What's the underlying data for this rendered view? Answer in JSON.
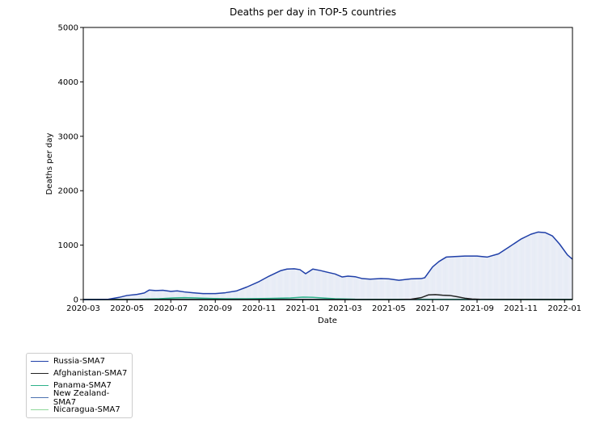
{
  "chart_data": {
    "type": "line",
    "title": "Deaths per day in TOP-5 countries",
    "xlabel": "Date",
    "ylabel": "Deaths per day",
    "ylim": [
      0,
      5000
    ],
    "yticks": [
      0,
      1000,
      2000,
      3000,
      4000,
      5000
    ],
    "xlim": [
      "2020-03-01",
      "2022-01-12"
    ],
    "xticks": [
      "2020-03",
      "2020-05",
      "2020-07",
      "2020-09",
      "2020-11",
      "2021-01",
      "2021-03",
      "2021-05",
      "2021-07",
      "2021-09",
      "2021-11",
      "2022-01"
    ],
    "grid": false,
    "legend_position": "bottom-left, below the plot",
    "bars": {
      "series": "Russia",
      "color": "#dfe5f2",
      "note": "daily bars behind the lines"
    },
    "series": [
      {
        "name": "Russia-SMA7",
        "color": "#1f3fa8",
        "x": [
          "2020-03-01",
          "2020-03-20",
          "2020-04-05",
          "2020-04-20",
          "2020-05-01",
          "2020-05-15",
          "2020-05-25",
          "2020-06-01",
          "2020-06-10",
          "2020-06-20",
          "2020-07-01",
          "2020-07-10",
          "2020-07-20",
          "2020-08-01",
          "2020-08-15",
          "2020-09-01",
          "2020-09-15",
          "2020-10-01",
          "2020-10-15",
          "2020-11-01",
          "2020-11-15",
          "2020-12-01",
          "2020-12-10",
          "2020-12-20",
          "2020-12-28",
          "2021-01-05",
          "2021-01-15",
          "2021-01-25",
          "2021-02-05",
          "2021-02-15",
          "2021-02-25",
          "2021-03-05",
          "2021-03-15",
          "2021-03-25",
          "2021-04-05",
          "2021-04-20",
          "2021-05-01",
          "2021-05-15",
          "2021-06-01",
          "2021-06-15",
          "2021-06-20",
          "2021-07-01",
          "2021-07-10",
          "2021-07-20",
          "2021-08-01",
          "2021-08-15",
          "2021-08-20",
          "2021-09-01",
          "2021-09-15",
          "2021-10-01",
          "2021-10-15",
          "2021-11-01",
          "2021-11-15",
          "2021-11-25",
          "2021-12-05",
          "2021-12-15",
          "2021-12-25",
          "2022-01-05",
          "2022-01-12"
        ],
        "y": [
          0,
          0,
          5,
          40,
          75,
          95,
          120,
          175,
          165,
          170,
          150,
          160,
          140,
          125,
          110,
          110,
          125,
          160,
          230,
          330,
          430,
          530,
          560,
          565,
          550,
          475,
          560,
          535,
          500,
          470,
          415,
          430,
          420,
          385,
          375,
          385,
          380,
          355,
          380,
          385,
          400,
          600,
          700,
          780,
          790,
          800,
          800,
          800,
          780,
          840,
          960,
          1110,
          1200,
          1240,
          1230,
          1170,
          1020,
          820,
          740
        ]
      },
      {
        "name": "Afghanistan-SMA7",
        "color": "#222222",
        "x": [
          "2020-03-01",
          "2021-05-15",
          "2021-06-01",
          "2021-06-15",
          "2021-06-25",
          "2021-07-05",
          "2021-07-15",
          "2021-07-25",
          "2021-08-05",
          "2021-08-15",
          "2021-08-25",
          "2021-09-05",
          "2022-01-12"
        ],
        "y": [
          0,
          0,
          5,
          35,
          85,
          90,
          80,
          75,
          50,
          25,
          10,
          3,
          0
        ]
      },
      {
        "name": "Panama-SMA7",
        "color": "#2db18a",
        "x": [
          "2020-03-01",
          "2020-05-15",
          "2020-06-15",
          "2020-07-05",
          "2020-07-20",
          "2020-08-05",
          "2020-08-25",
          "2020-09-15",
          "2020-10-15",
          "2020-11-15",
          "2020-12-15",
          "2021-01-01",
          "2021-01-15",
          "2021-02-01",
          "2021-02-15",
          "2021-03-15",
          "2022-01-12"
        ],
        "y": [
          0,
          3,
          15,
          30,
          35,
          30,
          20,
          15,
          15,
          20,
          30,
          45,
          40,
          25,
          15,
          5,
          0
        ]
      },
      {
        "name": "New Zealand-SMA7",
        "color": "#4c72b0",
        "x": [
          "2020-03-01",
          "2022-01-12"
        ],
        "y": [
          0,
          0
        ]
      },
      {
        "name": "Nicaragua-SMA7",
        "color": "#8fd89a",
        "x": [
          "2020-03-01",
          "2020-05-15",
          "2020-06-15",
          "2020-07-15",
          "2020-08-15",
          "2020-09-15",
          "2022-01-12"
        ],
        "y": [
          0,
          2,
          8,
          6,
          3,
          1,
          0
        ]
      }
    ]
  }
}
